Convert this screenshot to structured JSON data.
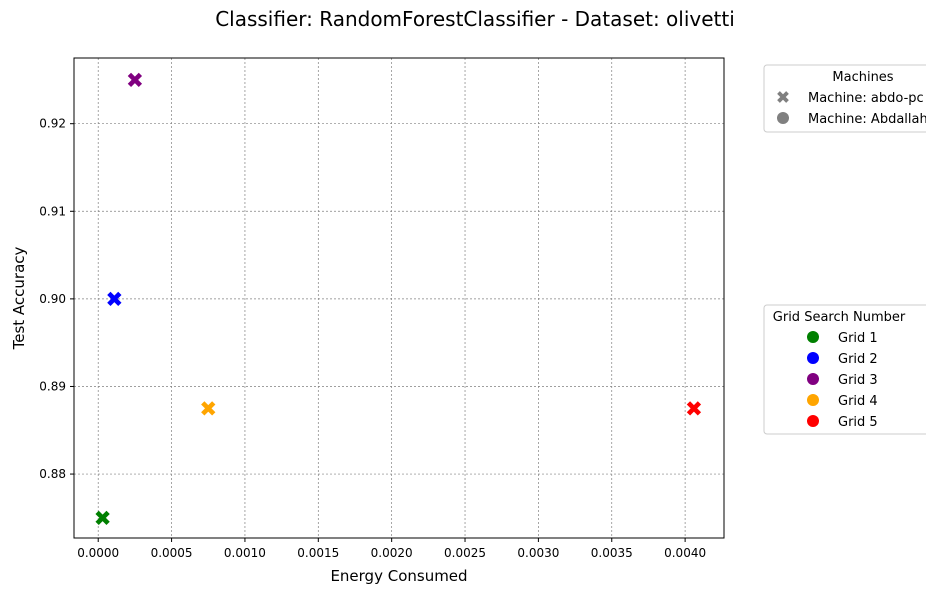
{
  "chart_data": {
    "type": "scatter",
    "title": "Classifier: RandomForestClassifier - Dataset: olivetti",
    "xlabel": "Energy Consumed",
    "ylabel": "Test Accuracy",
    "xlim": [
      -0.000165,
      0.004265
    ],
    "ylim": [
      0.8727,
      0.9275
    ],
    "xticks": [
      "0.0000",
      "0.0005",
      "0.0010",
      "0.0015",
      "0.0020",
      "0.0025",
      "0.0030",
      "0.0035",
      "0.0040"
    ],
    "xtick_values": [
      0,
      0.0005,
      0.001,
      0.0015,
      0.002,
      0.0025,
      0.003,
      0.0035,
      0.004
    ],
    "yticks": [
      "0.88",
      "0.89",
      "0.90",
      "0.91",
      "0.92"
    ],
    "ytick_values": [
      0.88,
      0.89,
      0.9,
      0.91,
      0.92
    ],
    "grid": true,
    "points": [
      {
        "grid": "Grid 1",
        "machine": "Machine: abdo-pc",
        "x": 3e-05,
        "y": 0.875,
        "marker": "x"
      },
      {
        "grid": "Grid 2",
        "machine": "Machine: abdo-pc",
        "x": 0.00011,
        "y": 0.9,
        "marker": "x"
      },
      {
        "grid": "Grid 3",
        "machine": "Machine: abdo-pc",
        "x": 0.00025,
        "y": 0.925,
        "marker": "x"
      },
      {
        "grid": "Grid 4",
        "machine": "Machine: abdo-pc",
        "x": 0.00075,
        "y": 0.8875,
        "marker": "x"
      },
      {
        "grid": "Grid 5",
        "machine": "Machine: abdo-pc",
        "x": 0.00406,
        "y": 0.8875,
        "marker": "x"
      }
    ],
    "legend_machines": {
      "title": "Machines",
      "placement": "outside-upper-right",
      "entries": [
        {
          "label": "Machine: abdo-pc",
          "marker": "x",
          "color": "#808080"
        },
        {
          "label": "Machine: Abdallah-PC",
          "marker": "o",
          "color": "#808080"
        }
      ]
    },
    "legend_grid": {
      "title": "Grid Search Number",
      "placement": "outside-center-right",
      "entries": [
        {
          "label": "Grid 1",
          "color": "#008000"
        },
        {
          "label": "Grid 2",
          "color": "#0000ff"
        },
        {
          "label": "Grid 3",
          "color": "#800080"
        },
        {
          "label": "Grid 4",
          "color": "#ffa500"
        },
        {
          "label": "Grid 5",
          "color": "#ff0000"
        }
      ]
    }
  }
}
